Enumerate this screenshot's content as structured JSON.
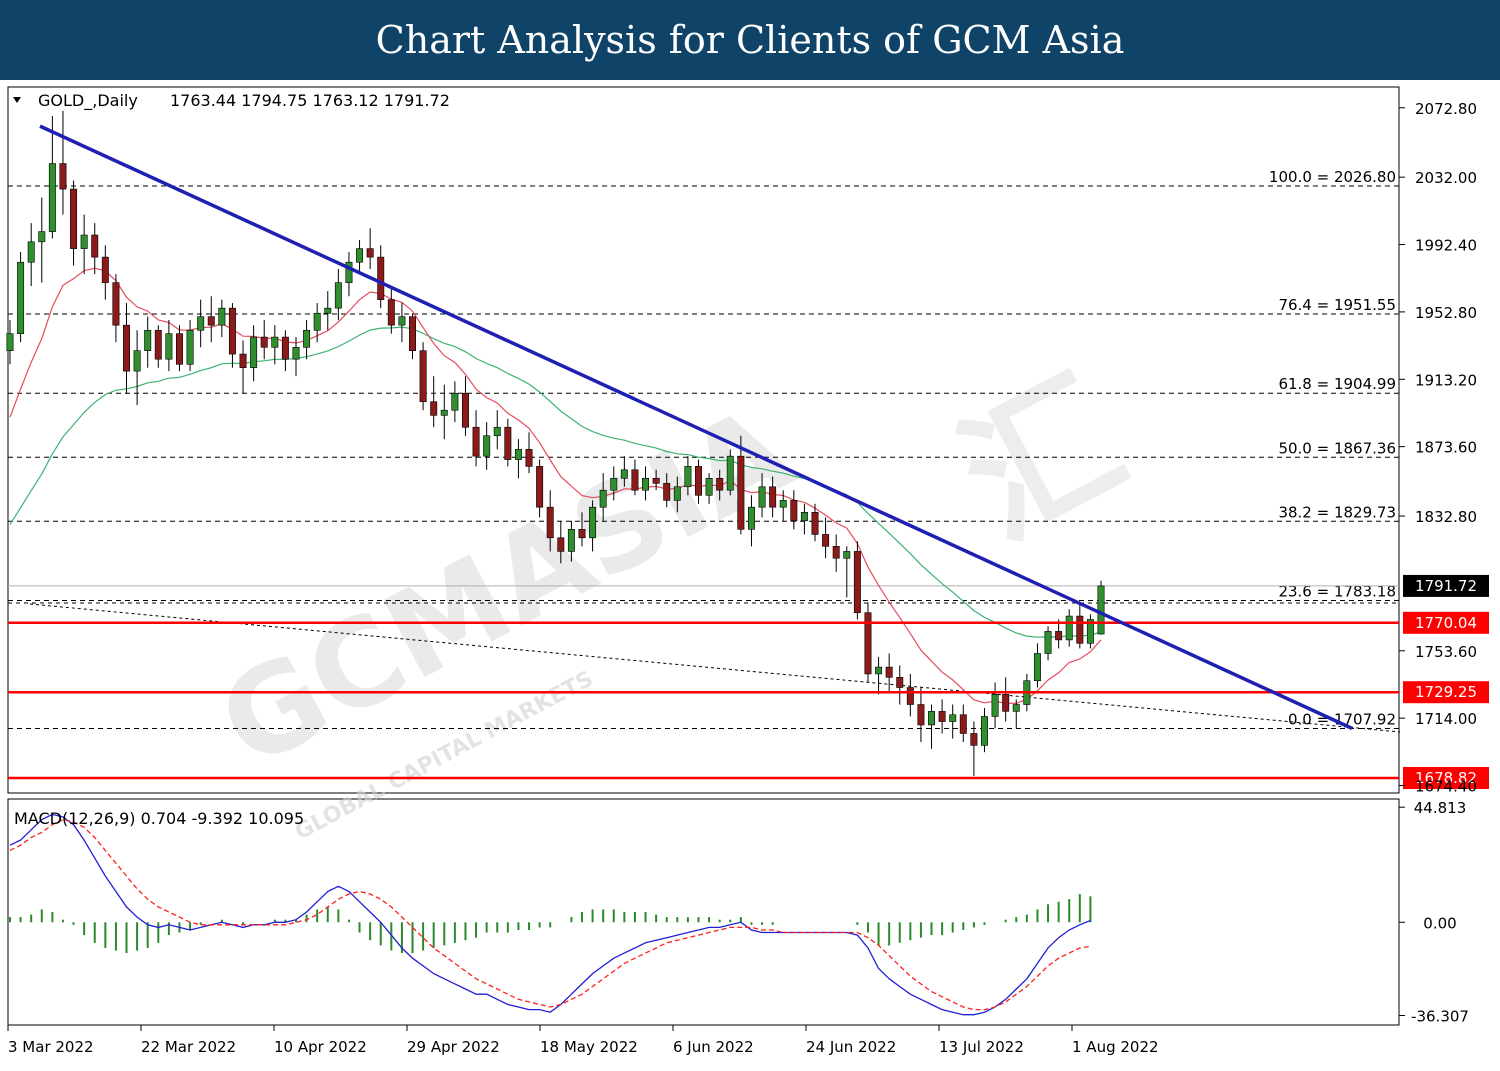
{
  "banner": {
    "title": "Chart Analysis for Clients of GCM Asia"
  },
  "chart": {
    "symbol_line": "GOLD_,Daily",
    "ohlc_line": "1763.44 1794.75 1763.12 1791.72"
  },
  "watermark": {
    "brand": "GCMASIA",
    "sub": "GLOBAL CAPITAL MARKETS",
    "cn": "汇"
  },
  "colors": {
    "banner": "#0f4468",
    "trendline": "#1f1fb4",
    "level": "#ff0000",
    "bull": "#2f8f2f",
    "bear": "#8b1a1a",
    "ma_fast": "#e64d5c",
    "ma_slow": "#3cb371",
    "macd": "#1f1fd6",
    "signal": "#ff2020",
    "hist": "#2a8a2a"
  },
  "chart_data": [
    {
      "type": "candlestick",
      "title": "GOLD_,Daily",
      "price_axis_ticks": [
        "2072.80",
        "2032.00",
        "1992.40",
        "1952.80",
        "1913.20",
        "1873.60",
        "1832.80",
        "1753.60",
        "1714.00",
        "1674.40"
      ],
      "date_labels": [
        "3 Mar 2022",
        "22 Mar 2022",
        "10 Apr 2022",
        "29 Apr 2022",
        "18 May 2022",
        "6 Jun 2022",
        "24 Jun 2022",
        "13 Jul 2022",
        "1 Aug 2022"
      ],
      "ylim": [
        1670,
        2085
      ],
      "current_price": "1791.72",
      "support_resistance": [
        "1770.04",
        "1729.25",
        "1678.82"
      ],
      "fibonacci": [
        {
          "label": "100.0 = 2026.80",
          "value": 2026.8
        },
        {
          "label": "76.4 = 1951.55",
          "value": 1951.55
        },
        {
          "label": "61.8 = 1904.99",
          "value": 1904.99
        },
        {
          "label": "50.0 = 1867.36",
          "value": 1867.36
        },
        {
          "label": "38.2 = 1829.73",
          "value": 1829.73
        },
        {
          "label": "23.6 = 1783.18",
          "value": 1783.18
        },
        {
          "label": "0.0 = 1707.92",
          "value": 1707.92
        }
      ],
      "trendline": {
        "start": {
          "date": "4 Mar 2022",
          "price": 2062
        },
        "end": {
          "date": "8 Aug 2022",
          "price": 1708
        }
      },
      "candles": [
        [
          1930,
          1948,
          1922,
          1940
        ],
        [
          1940,
          1988,
          1935,
          1982
        ],
        [
          1982,
          2005,
          1968,
          1994
        ],
        [
          1994,
          2020,
          1970,
          2000
        ],
        [
          2000,
          2068,
          1996,
          2040
        ],
        [
          2040,
          2071,
          2010,
          2025
        ],
        [
          2025,
          2030,
          1980,
          1990
        ],
        [
          1990,
          2010,
          1975,
          1998
        ],
        [
          1998,
          2005,
          1975,
          1985
        ],
        [
          1985,
          1992,
          1960,
          1970
        ],
        [
          1970,
          1975,
          1935,
          1945
        ],
        [
          1945,
          1958,
          1905,
          1918
        ],
        [
          1918,
          1942,
          1898,
          1930
        ],
        [
          1930,
          1950,
          1920,
          1942
        ],
        [
          1942,
          1945,
          1920,
          1925
        ],
        [
          1925,
          1948,
          1918,
          1940
        ],
        [
          1940,
          1945,
          1918,
          1922
        ],
        [
          1922,
          1948,
          1918,
          1942
        ],
        [
          1942,
          1960,
          1932,
          1950
        ],
        [
          1950,
          1962,
          1935,
          1945
        ],
        [
          1945,
          1960,
          1938,
          1955
        ],
        [
          1955,
          1958,
          1920,
          1928
        ],
        [
          1928,
          1936,
          1905,
          1920
        ],
        [
          1920,
          1945,
          1912,
          1938
        ],
        [
          1938,
          1948,
          1925,
          1932
        ],
        [
          1932,
          1945,
          1922,
          1938
        ],
        [
          1938,
          1942,
          1918,
          1925
        ],
        [
          1925,
          1938,
          1915,
          1932
        ],
        [
          1932,
          1948,
          1925,
          1942
        ],
        [
          1942,
          1958,
          1935,
          1952
        ],
        [
          1952,
          1965,
          1942,
          1955
        ],
        [
          1955,
          1978,
          1948,
          1970
        ],
        [
          1970,
          1988,
          1962,
          1982
        ],
        [
          1982,
          1995,
          1975,
          1990
        ],
        [
          1990,
          2002,
          1978,
          1985
        ],
        [
          1985,
          1992,
          1955,
          1960
        ],
        [
          1960,
          1968,
          1940,
          1945
        ],
        [
          1945,
          1958,
          1935,
          1950
        ],
        [
          1950,
          1952,
          1925,
          1930
        ],
        [
          1930,
          1935,
          1895,
          1900
        ],
        [
          1900,
          1915,
          1885,
          1892
        ],
        [
          1892,
          1910,
          1878,
          1895
        ],
        [
          1895,
          1912,
          1888,
          1905
        ],
        [
          1905,
          1915,
          1880,
          1885
        ],
        [
          1885,
          1895,
          1862,
          1868
        ],
        [
          1868,
          1888,
          1860,
          1880
        ],
        [
          1880,
          1895,
          1872,
          1885
        ],
        [
          1885,
          1890,
          1862,
          1866
        ],
        [
          1866,
          1878,
          1855,
          1872
        ],
        [
          1872,
          1882,
          1858,
          1862
        ],
        [
          1862,
          1866,
          1832,
          1838
        ],
        [
          1838,
          1848,
          1812,
          1820
        ],
        [
          1820,
          1830,
          1805,
          1812
        ],
        [
          1812,
          1830,
          1806,
          1825
        ],
        [
          1825,
          1835,
          1815,
          1820
        ],
        [
          1820,
          1842,
          1812,
          1838
        ],
        [
          1838,
          1858,
          1830,
          1848
        ],
        [
          1848,
          1862,
          1842,
          1855
        ],
        [
          1855,
          1868,
          1850,
          1860
        ],
        [
          1860,
          1866,
          1845,
          1848
        ],
        [
          1848,
          1862,
          1842,
          1855
        ],
        [
          1855,
          1860,
          1848,
          1852
        ],
        [
          1852,
          1858,
          1838,
          1842
        ],
        [
          1842,
          1856,
          1835,
          1850
        ],
        [
          1850,
          1868,
          1845,
          1862
        ],
        [
          1862,
          1866,
          1840,
          1845
        ],
        [
          1845,
          1858,
          1840,
          1855
        ],
        [
          1855,
          1860,
          1842,
          1848
        ],
        [
          1848,
          1872,
          1845,
          1868
        ],
        [
          1868,
          1880,
          1822,
          1825
        ],
        [
          1825,
          1845,
          1815,
          1838
        ],
        [
          1838,
          1858,
          1832,
          1850
        ],
        [
          1850,
          1856,
          1832,
          1838
        ],
        [
          1838,
          1848,
          1830,
          1842
        ],
        [
          1842,
          1848,
          1825,
          1830
        ],
        [
          1830,
          1840,
          1822,
          1835
        ],
        [
          1835,
          1840,
          1818,
          1822
        ],
        [
          1822,
          1832,
          1808,
          1815
        ],
        [
          1815,
          1822,
          1800,
          1808
        ],
        [
          1808,
          1815,
          1785,
          1812
        ],
        [
          1812,
          1818,
          1772,
          1776
        ],
        [
          1776,
          1782,
          1735,
          1740
        ],
        [
          1740,
          1750,
          1728,
          1744
        ],
        [
          1744,
          1752,
          1730,
          1738
        ],
        [
          1738,
          1745,
          1722,
          1732
        ],
        [
          1732,
          1740,
          1715,
          1722
        ],
        [
          1722,
          1732,
          1700,
          1710
        ],
        [
          1710,
          1722,
          1696,
          1718
        ],
        [
          1718,
          1725,
          1705,
          1712
        ],
        [
          1712,
          1722,
          1702,
          1716
        ],
        [
          1716,
          1722,
          1700,
          1705
        ],
        [
          1705,
          1712,
          1680,
          1698
        ],
        [
          1698,
          1720,
          1694,
          1715
        ],
        [
          1715,
          1735,
          1708,
          1728
        ],
        [
          1728,
          1738,
          1712,
          1718
        ],
        [
          1718,
          1725,
          1708,
          1722
        ],
        [
          1722,
          1740,
          1718,
          1736
        ],
        [
          1736,
          1758,
          1732,
          1752
        ],
        [
          1752,
          1768,
          1748,
          1765
        ],
        [
          1765,
          1772,
          1755,
          1760
        ],
        [
          1760,
          1778,
          1756,
          1774
        ],
        [
          1774,
          1782,
          1755,
          1758
        ],
        [
          1758,
          1775,
          1755,
          1772
        ],
        [
          1763.44,
          1794.75,
          1763.12,
          1791.72
        ]
      ]
    },
    {
      "type": "line",
      "title": "MACD(12,26,9) 0.704 -9.392 10.095",
      "y_ticks": [
        "44.813",
        "0.00",
        "-36.307"
      ],
      "ylim": [
        -40,
        48
      ],
      "series": [
        {
          "name": "MACD",
          "values": [
            30,
            32,
            36,
            40,
            42,
            41,
            38,
            32,
            25,
            18,
            12,
            6,
            2,
            -1,
            -2,
            -1,
            -2,
            -3,
            -2,
            -1,
            0,
            -1,
            -2,
            -1,
            -1,
            0,
            0,
            1,
            4,
            8,
            12,
            14,
            12,
            8,
            4,
            0,
            -5,
            -10,
            -14,
            -17,
            -20,
            -22,
            -24,
            -26,
            -28,
            -28,
            -30,
            -32,
            -33,
            -34,
            -34,
            -35,
            -32,
            -28,
            -24,
            -20,
            -17,
            -14,
            -12,
            -10,
            -8,
            -7,
            -6,
            -5,
            -4,
            -3,
            -2,
            -2,
            -1,
            0,
            -3,
            -4,
            -4,
            -4,
            -4,
            -4,
            -4,
            -4,
            -4,
            -4,
            -5,
            -10,
            -18,
            -22,
            -25,
            -28,
            -30,
            -32,
            -34,
            -35,
            -36,
            -36,
            -35,
            -33,
            -30,
            -26,
            -22,
            -16,
            -10,
            -6,
            -3,
            -1,
            0.704
          ]
        },
        {
          "name": "Signal",
          "values": [
            28,
            30,
            33,
            35,
            38,
            40,
            39,
            37,
            33,
            28,
            23,
            18,
            13,
            9,
            6,
            4,
            2,
            0,
            -1,
            -1,
            -1,
            -1,
            -1,
            -1,
            -1,
            -1,
            -1,
            0,
            1,
            3,
            6,
            9,
            11,
            12,
            11,
            9,
            6,
            2,
            -2,
            -6,
            -10,
            -13,
            -16,
            -19,
            -22,
            -24,
            -26,
            -28,
            -30,
            -31,
            -32,
            -33,
            -32,
            -30,
            -28,
            -25,
            -22,
            -19,
            -16,
            -14,
            -12,
            -10,
            -8,
            -7,
            -6,
            -5,
            -4,
            -3,
            -2,
            -2,
            -2,
            -3,
            -3,
            -4,
            -4,
            -4,
            -4,
            -4,
            -4,
            -4,
            -4,
            -6,
            -9,
            -13,
            -17,
            -21,
            -24,
            -27,
            -29,
            -31,
            -33,
            -34,
            -34,
            -33,
            -31,
            -28,
            -25,
            -21,
            -17,
            -14,
            -12,
            -10,
            -9.392
          ]
        },
        {
          "name": "Histogram",
          "values": [
            2,
            2,
            3,
            5,
            4,
            1,
            -1,
            -5,
            -8,
            -10,
            -11,
            -12,
            -11,
            -10,
            -8,
            -5,
            -4,
            -3,
            -1,
            0,
            1,
            0,
            -1,
            0,
            0,
            1,
            1,
            1,
            3,
            5,
            6,
            5,
            1,
            -4,
            -7,
            -9,
            -11,
            -12,
            -12,
            -11,
            -10,
            -9,
            -8,
            -7,
            -6,
            -4,
            -4,
            -4,
            -3,
            -3,
            -2,
            -2,
            0,
            2,
            4,
            5,
            5,
            5,
            4,
            4,
            4,
            3,
            2,
            2,
            2,
            2,
            2,
            1,
            1,
            2,
            -1,
            -1,
            -1,
            0,
            0,
            0,
            0,
            0,
            0,
            0,
            -1,
            -4,
            -9,
            -9,
            -8,
            -7,
            -6,
            -5,
            -5,
            -4,
            -3,
            -2,
            -1,
            0,
            1,
            2,
            3,
            5,
            7,
            8,
            9,
            11,
            10.095
          ]
        }
      ]
    }
  ]
}
